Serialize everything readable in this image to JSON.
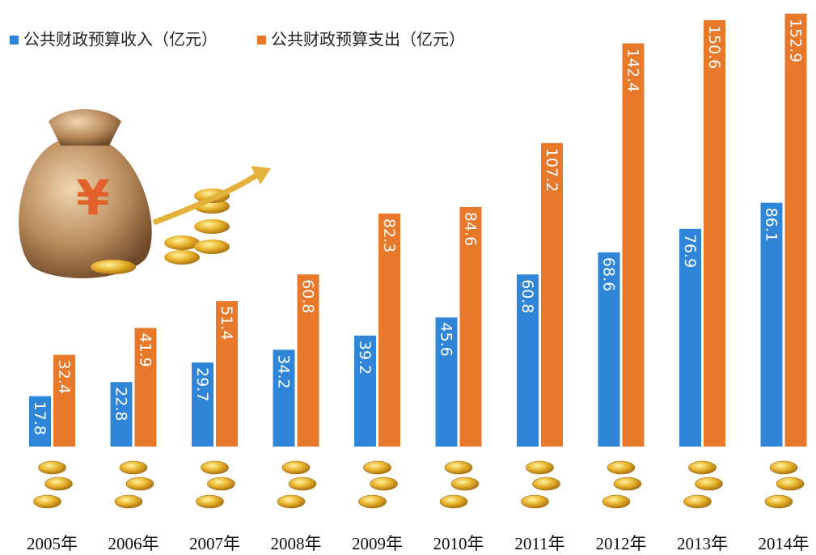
{
  "chart_data": {
    "type": "bar",
    "categories": [
      "2005年",
      "2006年",
      "2007年",
      "2008年",
      "2009年",
      "2010年",
      "2011年",
      "2012年",
      "2013年",
      "2014年"
    ],
    "series": [
      {
        "name": "公共财政预算收入（亿元）",
        "color": "#2f86d9",
        "values": [
          17.8,
          22.8,
          29.7,
          34.2,
          39.2,
          45.6,
          60.8,
          68.6,
          76.9,
          86.1
        ]
      },
      {
        "name": "公共财政预算支出（亿元）",
        "color": "#e8782a",
        "values": [
          32.4,
          41.9,
          51.4,
          60.8,
          82.3,
          84.6,
          107.2,
          142.4,
          150.6,
          152.9
        ]
      }
    ]
  }
}
